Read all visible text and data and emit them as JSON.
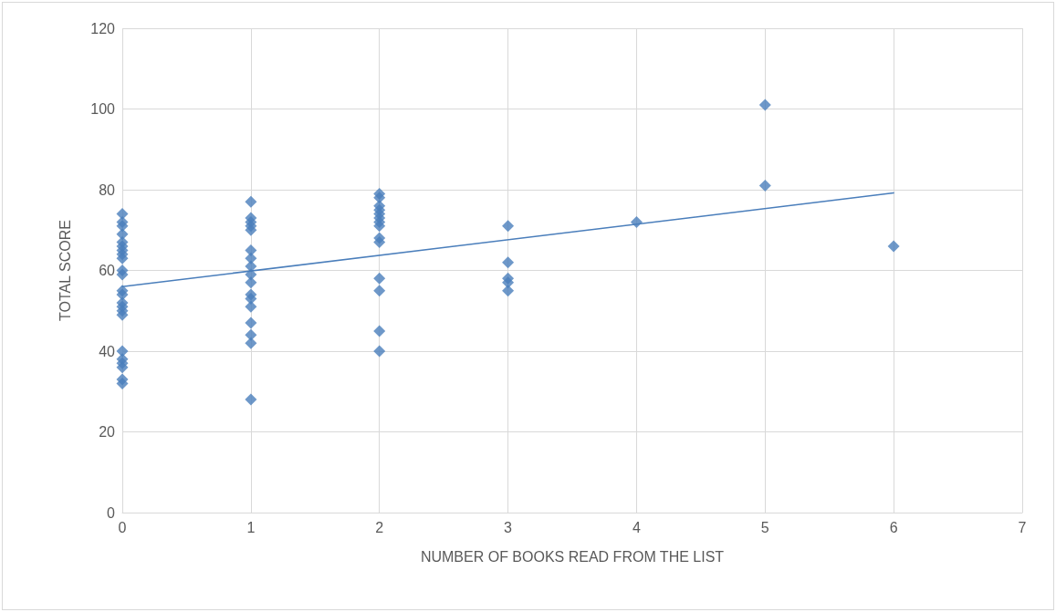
{
  "chart_data": {
    "type": "scatter",
    "xlabel": "NUMBER OF BOOKS READ FROM THE LIST",
    "ylabel": "TOTAL SCORE",
    "marker": "diamond",
    "grid": true,
    "xlim": [
      0,
      7
    ],
    "xticks": [
      0,
      1,
      2,
      3,
      4,
      5,
      6,
      7
    ],
    "ylim": [
      0,
      120
    ],
    "yticks": [
      0,
      20,
      40,
      60,
      80,
      100,
      120
    ],
    "series": [
      {
        "color": "#4a7ebb",
        "x": [
          0,
          0,
          0,
          0,
          0,
          0,
          0,
          0,
          0,
          0,
          0,
          0,
          0,
          0,
          0,
          0,
          0,
          0,
          0,
          0,
          0,
          0,
          0,
          1,
          1,
          1,
          1,
          1,
          1,
          1,
          1,
          1,
          1,
          1,
          1,
          1,
          1,
          1,
          1,
          1,
          2,
          2,
          2,
          2,
          2,
          2,
          2,
          2,
          2,
          2,
          2,
          2,
          2,
          2,
          3,
          3,
          3,
          3,
          3,
          4,
          5,
          5,
          6
        ],
        "values": [
          74,
          72,
          71,
          69,
          67,
          66,
          65,
          64,
          63,
          60,
          59,
          55,
          54,
          52,
          51,
          50,
          49,
          40,
          38,
          37,
          36,
          33,
          32,
          77,
          73,
          72,
          71,
          70,
          65,
          63,
          61,
          59,
          57,
          54,
          53,
          51,
          47,
          44,
          42,
          28,
          79,
          78,
          76,
          75,
          74,
          73,
          72,
          71,
          68,
          67,
          58,
          55,
          45,
          40,
          71,
          62,
          58,
          57,
          55,
          72,
          101,
          81,
          66
        ]
      },
      {
        "type": "line",
        "color": "#4a7ebb",
        "marker": "none",
        "line_style": "solid",
        "x": [
          0,
          6
        ],
        "values": [
          56,
          79.2
        ]
      }
    ]
  }
}
